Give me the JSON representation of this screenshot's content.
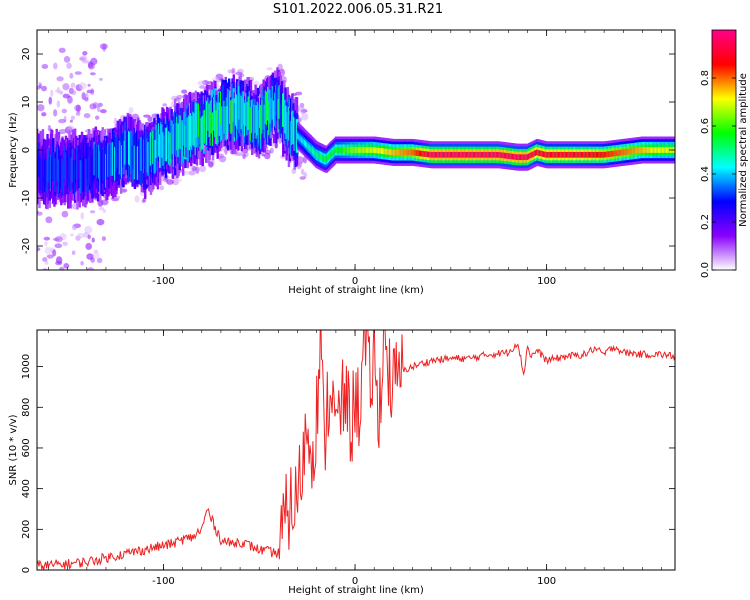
{
  "figure_title": "S101.2022.006.05.31.R21",
  "chart_data": [
    {
      "type": "heatmap",
      "title": "S101.2022.006.05.31.R21",
      "xlabel": "Height of straight line (km)",
      "ylabel": "Frequency (Hz)",
      "xlim": [
        -166,
        167
      ],
      "ylim": [
        -25,
        25
      ],
      "xticks": [
        -100,
        0,
        100
      ],
      "yticks": [
        -20,
        -10,
        0,
        10,
        20
      ],
      "colorbar": {
        "label": "Normalized spectral amplitude",
        "ticks": [
          0.0,
          0.2,
          0.4,
          0.6,
          0.8
        ],
        "range": [
          0,
          1
        ],
        "colors": [
          "#ffffff",
          "#8800ff",
          "#0000ff",
          "#00ffff",
          "#00ff00",
          "#ffff00",
          "#ff0000",
          "#ff0088"
        ]
      },
      "ridge": {
        "x": [
          -145,
          -130,
          -120,
          -110,
          -100,
          -90,
          -80,
          -70,
          -60,
          -50,
          -45,
          -40,
          -35,
          -30,
          -25,
          -20,
          -15,
          -10,
          -5,
          0,
          10,
          20,
          30,
          40,
          60,
          75,
          85,
          90,
          95,
          100,
          110,
          120,
          130,
          140,
          150,
          160,
          167
        ],
        "y": [
          -4,
          -3,
          0,
          -2,
          1,
          3,
          5,
          7,
          8,
          6,
          8,
          9,
          5,
          3,
          1,
          -1,
          -2,
          0,
          0,
          0,
          0,
          -0.5,
          -0.5,
          -1,
          -1,
          -1,
          -1.5,
          -1.5,
          -0.5,
          -1,
          -1,
          -1,
          -1,
          -0.5,
          0,
          0,
          0
        ],
        "amplitude": [
          0.3,
          0.35,
          0.4,
          0.4,
          0.45,
          0.45,
          0.5,
          0.5,
          0.5,
          0.45,
          0.45,
          0.45,
          0.4,
          0.4,
          0.45,
          0.5,
          0.55,
          0.55,
          0.6,
          0.65,
          0.7,
          0.75,
          0.8,
          0.95,
          0.95,
          0.95,
          0.95,
          0.95,
          0.9,
          0.9,
          0.9,
          0.9,
          0.85,
          0.8,
          0.75,
          0.7,
          0.7
        ]
      }
    },
    {
      "type": "line",
      "xlabel": "Height of straight line (km)",
      "ylabel": "SNR (10 * v/v)",
      "xlim": [
        -166,
        167
      ],
      "ylim": [
        0,
        1180
      ],
      "xticks": [
        -100,
        0,
        100
      ],
      "yticks": [
        0,
        200,
        400,
        600,
        800,
        1000
      ],
      "series": [
        {
          "color": "#ee2222",
          "x": [
            -166,
            -150,
            -140,
            -130,
            -120,
            -110,
            -100,
            -95,
            -90,
            -85,
            -80,
            -77,
            -75,
            -70,
            -65,
            -60,
            -55,
            -50,
            -45,
            -40,
            -35,
            -30,
            -28,
            -25,
            -22,
            -20,
            -18,
            -16,
            -15,
            -12,
            -10,
            -8,
            -5,
            -2,
            0,
            2,
            5,
            8,
            10,
            12,
            15,
            18,
            20,
            25,
            30,
            40,
            50,
            60,
            70,
            80,
            85,
            88,
            90,
            92,
            95,
            100,
            110,
            120,
            125,
            130,
            135,
            140,
            150,
            160,
            167
          ],
          "y": [
            20,
            30,
            40,
            60,
            80,
            100,
            120,
            130,
            150,
            160,
            200,
            300,
            250,
            150,
            130,
            140,
            120,
            100,
            90,
            80,
            300,
            350,
            500,
            700,
            600,
            780,
            1160,
            550,
            800,
            900,
            650,
            780,
            850,
            700,
            850,
            800,
            1100,
            900,
            1080,
            700,
            1180,
            950,
            900,
            980,
            1000,
            1030,
            1040,
            1040,
            1060,
            1070,
            1120,
            960,
            1100,
            1050,
            1080,
            1030,
            1050,
            1060,
            1090,
            1060,
            1100,
            1070,
            1060,
            1060,
            1050
          ]
        }
      ]
    }
  ]
}
